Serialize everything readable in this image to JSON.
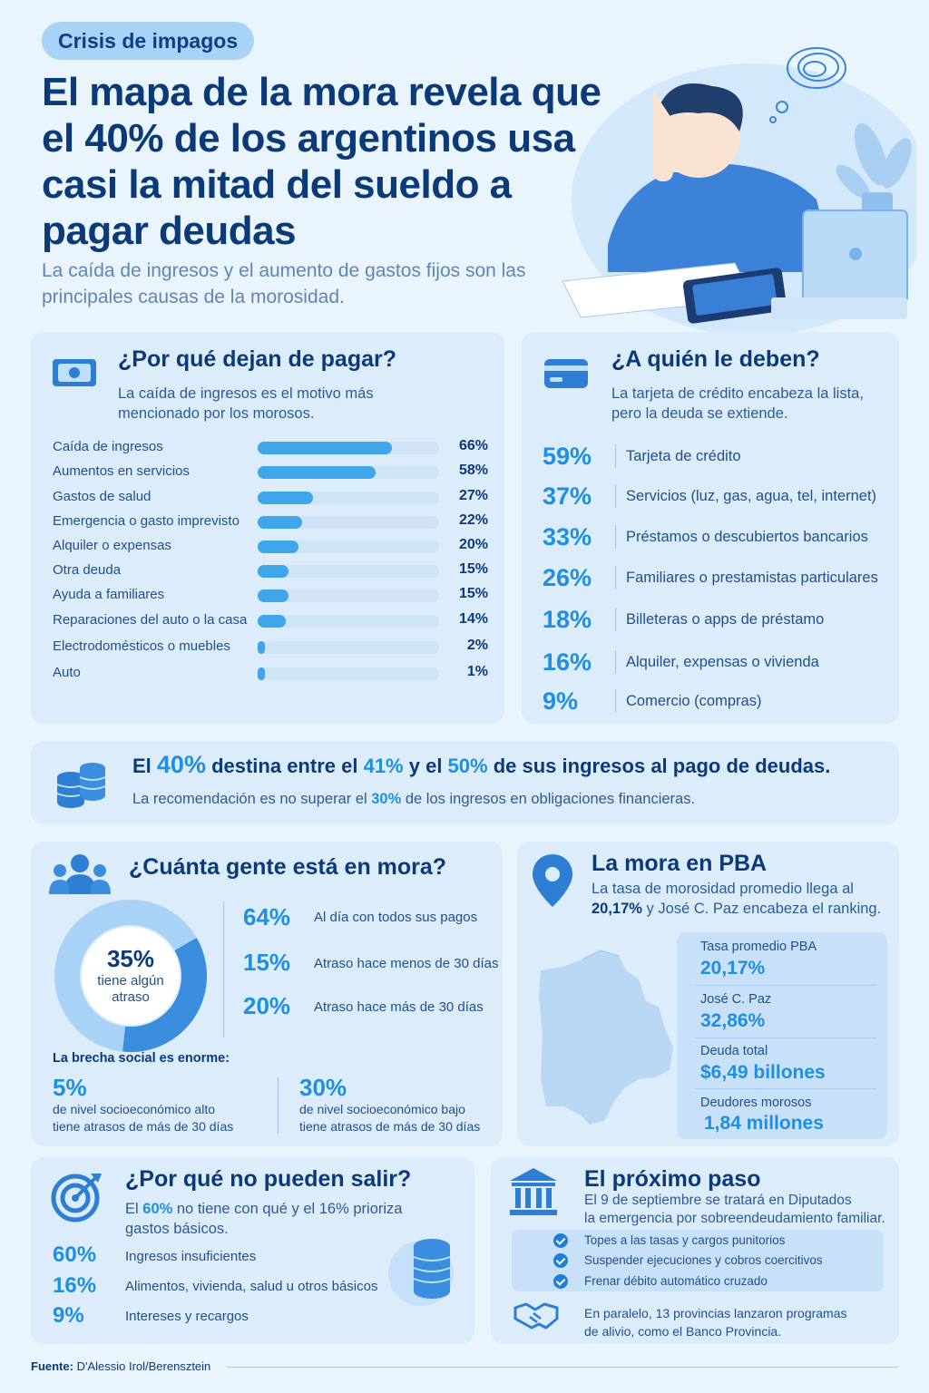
{
  "tag": "Crisis de impagos",
  "headline": "El mapa de la mora revela que el 40% de los argentinos usa casi la mitad del sueldo a pagar deudas",
  "subhead": "La caída de ingresos y el aumento de gastos fijos son las principales causas de la morosidad.",
  "why": {
    "title": "¿Por qué dejan de pagar?",
    "subtitle": "La caída de ingresos es el motivo más mencionado por los morosos.",
    "rows": [
      {
        "label": "Caída de ingresos",
        "value": 66,
        "text": "66%"
      },
      {
        "label": "Aumentos en servicios",
        "value": 58,
        "text": "58%"
      },
      {
        "label": "Gastos de salud",
        "value": 27,
        "text": "27%"
      },
      {
        "label": "Emergencia o gasto imprevisto",
        "value": 22,
        "text": "22%"
      },
      {
        "label": "Alquiler o expensas",
        "value": 20,
        "text": "20%"
      },
      {
        "label": "Otra deuda",
        "value": 15,
        "text": "15%"
      },
      {
        "label": "Ayuda a familiares",
        "value": 15,
        "text": "15%"
      },
      {
        "label": "Reparaciones del auto o la casa",
        "value": 14,
        "text": "14%"
      },
      {
        "label": "Electrodomésticos o muebles",
        "value": 2,
        "text": "2%"
      },
      {
        "label": "Auto",
        "value": 1,
        "text": "1%"
      }
    ]
  },
  "whom": {
    "title": "¿A quién le deben?",
    "subtitle": "La tarjeta de crédito encabeza la lista, pero la deuda se extiende.",
    "rows": [
      {
        "pct": "59%",
        "label": "Tarjeta de crédito"
      },
      {
        "pct": "37%",
        "label": "Servicios (luz, gas, agua, tel, internet)"
      },
      {
        "pct": "33%",
        "label": "Préstamos o descubiertos bancarios"
      },
      {
        "pct": "26%",
        "label": "Familiares o prestamistas particulares"
      },
      {
        "pct": "18%",
        "label": "Billeteras o apps de préstamo"
      },
      {
        "pct": "16%",
        "label": "Alquiler, expensas o vivienda"
      },
      {
        "pct": "9%",
        "label": "Comercio (compras)"
      }
    ]
  },
  "banner": {
    "l1a": "El ",
    "p1": "40%",
    "l1b": " destina entre el ",
    "p2": "41%",
    "l1c": " y el ",
    "p3": "50%",
    "l1d": " de sus ingresos al pago de deudas.",
    "l2a": "La recomendación es no superar el ",
    "p4": "30%",
    "l2b": " de los ingresos en obligaciones financieras."
  },
  "arrears": {
    "title": "¿Cuánta gente está en mora?",
    "donut_value": 35,
    "donut_pct": "35%",
    "donut_l1": "tiene algún",
    "donut_l2": "atraso",
    "stats": [
      {
        "pct": "64%",
        "label": "Al día con todos sus pagos"
      },
      {
        "pct": "15%",
        "label": "Atraso hace menos de 30 días"
      },
      {
        "pct": "20%",
        "label": "Atraso hace más de 30 días"
      }
    ],
    "gap_title": "La brecha social es enorme:",
    "gap_a_pct": "5%",
    "gap_a_l1": "de nivel socioeconómico alto",
    "gap_a_l2": "tiene atrasos de más de 30 días",
    "gap_b_pct": "30%",
    "gap_b_l1": "de nivel socioeconómico bajo",
    "gap_b_l2": "tiene atrasos de más de 30 días"
  },
  "pba": {
    "title": "La mora en PBA",
    "sub1": "La tasa de morosidad promedio llega al",
    "sub_pct": "20,17%",
    "sub2": " y José C. Paz encabeza el ranking.",
    "items": [
      {
        "k": "Tasa promedio PBA",
        "v": "20,17%"
      },
      {
        "k": "José C. Paz",
        "v": "32,86%"
      },
      {
        "k": "Deuda total",
        "v": "$6,49 billones"
      },
      {
        "k": "Deudores morosos",
        "v": "1,84 millones"
      }
    ]
  },
  "cant": {
    "title": "¿Por qué no pueden salir?",
    "sub_a": "El ",
    "sub_pct": "60%",
    "sub_b": " no tiene con qué y el 16% prioriza",
    "sub_c": "gastos básicos.",
    "rows": [
      {
        "pct": "60%",
        "label": "Ingresos insuficientes"
      },
      {
        "pct": "16%",
        "label": "Alimentos, vivienda, salud u otros básicos"
      },
      {
        "pct": "9%",
        "label": "Intereses y recargos"
      }
    ]
  },
  "next": {
    "title": "El próximo paso",
    "sub1": "El 9 de septiembre se tratará en Diputados",
    "sub2": "la emergencia por sobreendeudamiento familiar.",
    "checks": [
      "Topes a las tasas y cargos punitorios",
      "Suspender ejecuciones y cobros coercitivos",
      "Frenar débito automático cruzado"
    ],
    "foot1": "En paralelo, 13 provincias lanzaron programas",
    "foot2": "de alivio, como el Banco Provincia."
  },
  "source": {
    "label": "Fuente:",
    "text": " D'Alessio Irol/Berensztein"
  },
  "colors": {
    "accent": "#1e8fe3",
    "navy": "#0b3a78",
    "card": "#dcecfb",
    "bar": "#3fa6ec"
  }
}
